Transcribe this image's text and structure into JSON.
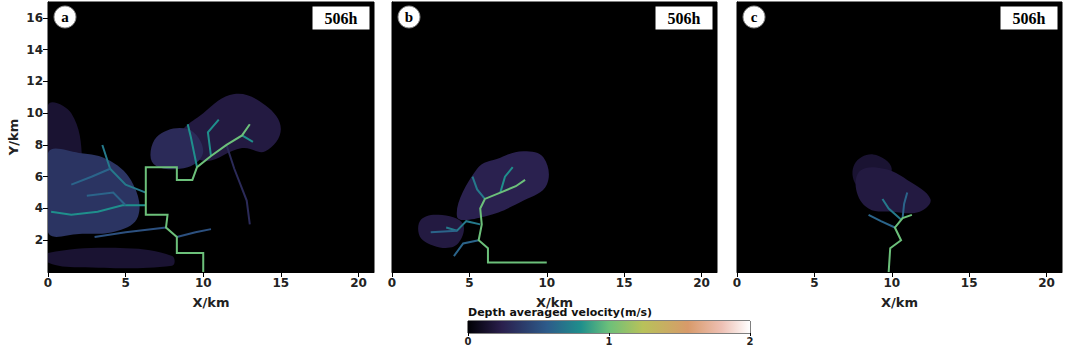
{
  "chart_data": [
    {
      "type": "flow_field",
      "label": "a",
      "time": "506h",
      "xlabel": "X/km",
      "ylabel": "Y/km",
      "xlim": [
        0,
        21
      ],
      "ylim": [
        0,
        17
      ],
      "xticks": [
        0,
        5,
        10,
        15,
        20
      ],
      "yticks": [
        2,
        4,
        6,
        8,
        10,
        12,
        14,
        16
      ],
      "plumes": [
        {
          "polygon": [
            [
              0,
              2.8
            ],
            [
              1.8,
              3.5
            ],
            [
              2.2,
              7
            ],
            [
              1.5,
              10
            ],
            [
              0,
              10.5
            ]
          ],
          "velocity": 0.15
        },
        {
          "polygon": [
            [
              0,
              0.6
            ],
            [
              2,
              0.3
            ],
            [
              8,
              0.4
            ],
            [
              8,
              1
            ],
            [
              5,
              1.5
            ],
            [
              0,
              1.2
            ]
          ],
          "velocity": 0.15
        },
        {
          "polygon": [
            [
              8.5,
              8.5
            ],
            [
              10,
              10
            ],
            [
              12,
              11.2
            ],
            [
              14,
              10.5
            ],
            [
              15,
              9
            ],
            [
              14,
              7.6
            ],
            [
              12.5,
              7.8
            ],
            [
              10,
              7
            ]
          ],
          "velocity": 0.2
        },
        {
          "polygon": [
            [
              0,
              2.5
            ],
            [
              2,
              2.4
            ],
            [
              4.5,
              2.6
            ],
            [
              5.8,
              3.5
            ],
            [
              5.5,
              5.5
            ],
            [
              4,
              7
            ],
            [
              2,
              7.5
            ],
            [
              0,
              7.5
            ]
          ],
          "velocity": 0.35
        },
        {
          "polygon": [
            [
              6.8,
              6.8
            ],
            [
              9,
              6.6
            ],
            [
              10,
              7.6
            ],
            [
              9,
              9
            ],
            [
              7,
              8.5
            ]
          ],
          "velocity": 0.3
        }
      ],
      "channels": [
        {
          "path": [
            [
              11.5,
              8
            ],
            [
              12,
              6.5
            ],
            [
              12.8,
              4.5
            ],
            [
              13,
              3
            ]
          ],
          "velocity": 0.3
        },
        {
          "path": [
            [
              12.5,
              8.6
            ],
            [
              13.2,
              8.2
            ]
          ],
          "velocity": 0.8
        },
        {
          "path": [
            [
              9.6,
              6.6
            ],
            [
              9.2,
              8.5
            ],
            [
              9,
              9.3
            ]
          ],
          "velocity": 0.8
        },
        {
          "path": [
            [
              10.5,
              7.3
            ],
            [
              10.3,
              8.8
            ],
            [
              11,
              9.6
            ]
          ],
          "velocity": 0.8
        },
        {
          "path": [
            [
              6.3,
              5
            ],
            [
              5,
              5.5
            ],
            [
              4,
              6.5
            ],
            [
              3.5,
              8
            ]
          ],
          "velocity": 0.7
        },
        {
          "path": [
            [
              6.3,
              4.2
            ],
            [
              4.8,
              4.2
            ],
            [
              3.2,
              3.8
            ],
            [
              1.5,
              3.6
            ],
            [
              0.2,
              3.8
            ]
          ],
          "velocity": 0.8
        },
        {
          "path": [
            [
              5,
              4.2
            ],
            [
              4.2,
              5
            ],
            [
              2.5,
              4.8
            ]
          ],
          "velocity": 0.6
        },
        {
          "path": [
            [
              4,
              6.5
            ],
            [
              2.8,
              6
            ],
            [
              1.5,
              5.5
            ]
          ],
          "velocity": 0.6
        },
        {
          "path": [
            [
              8.3,
              2.2
            ],
            [
              9.5,
              2.5
            ],
            [
              10.5,
              2.7
            ]
          ],
          "velocity": 0.5
        },
        {
          "path": [
            [
              7.6,
              2.8
            ],
            [
              5,
              2.5
            ],
            [
              3,
              2.2
            ]
          ],
          "velocity": 0.5
        },
        {
          "path": [
            [
              10,
              0
            ],
            [
              10,
              1.2
            ],
            [
              8.3,
              1.2
            ],
            [
              8.3,
              2.2
            ],
            [
              7.6,
              2.8
            ],
            [
              7.7,
              3.6
            ],
            [
              6.3,
              3.6
            ],
            [
              6.3,
              6.6
            ],
            [
              8.3,
              6.6
            ],
            [
              8.3,
              5.8
            ],
            [
              9.3,
              5.8
            ],
            [
              9.6,
              6.6
            ],
            [
              10.5,
              7.3
            ],
            [
              11.5,
              8
            ],
            [
              12.5,
              8.6
            ],
            [
              13,
              9.3
            ]
          ],
          "velocity": 1.0
        }
      ]
    },
    {
      "type": "flow_field",
      "label": "b",
      "time": "506h",
      "xlabel": "X/km",
      "tick_labels": "x",
      "xlim": [
        0,
        21
      ],
      "ylim": [
        0,
        17
      ],
      "xticks": [
        0,
        5,
        10,
        15,
        20
      ],
      "yticks": [
        2,
        4,
        6,
        8,
        10,
        12,
        14,
        16
      ],
      "plumes": [
        {
          "polygon": [
            [
              4.2,
              3.5
            ],
            [
              6,
              3.5
            ],
            [
              8.5,
              4.5
            ],
            [
              10,
              5.5
            ],
            [
              9.8,
              7.2
            ],
            [
              8.5,
              7.6
            ],
            [
              7,
              7.2
            ],
            [
              5.5,
              6.5
            ]
          ],
          "velocity": 0.25
        },
        {
          "polygon": [
            [
              2,
              2
            ],
            [
              4,
              1.6
            ],
            [
              4.6,
              3
            ],
            [
              3,
              3.6
            ],
            [
              1.8,
              3.2
            ]
          ],
          "velocity": 0.2
        }
      ],
      "channels": [
        {
          "path": [
            [
              7,
              5
            ],
            [
              7.3,
              6
            ],
            [
              7.8,
              6.6
            ]
          ],
          "velocity": 0.8
        },
        {
          "path": [
            [
              6,
              4.6
            ],
            [
              5.5,
              5.2
            ],
            [
              5.2,
              6
            ]
          ],
          "velocity": 0.7
        },
        {
          "path": [
            [
              5.7,
              3
            ],
            [
              4.8,
              3.2
            ],
            [
              4.2,
              2.6
            ],
            [
              3.5,
              2.8
            ]
          ],
          "velocity": 0.7
        },
        {
          "path": [
            [
              5.6,
              2
            ],
            [
              4.6,
              1.8
            ],
            [
              4,
              1
            ]
          ],
          "velocity": 0.6
        },
        {
          "path": [
            [
              4.2,
              2.6
            ],
            [
              2.5,
              2.5
            ]
          ],
          "velocity": 0.6
        },
        {
          "path": [
            [
              10,
              0.6
            ],
            [
              6.2,
              0.6
            ],
            [
              6.2,
              1.5
            ],
            [
              5.6,
              2
            ],
            [
              5.8,
              3
            ],
            [
              5.7,
              4
            ],
            [
              6,
              4.6
            ],
            [
              7,
              5
            ],
            [
              8,
              5.4
            ],
            [
              8.6,
              5.8
            ]
          ],
          "velocity": 1.0
        }
      ]
    },
    {
      "type": "flow_field",
      "label": "c",
      "time": "506h",
      "xlabel": "X/km",
      "tick_labels": "x",
      "xlim": [
        0,
        21
      ],
      "ylim": [
        0,
        17
      ],
      "xticks": [
        0,
        5,
        10,
        15,
        20
      ],
      "yticks": [
        2,
        4,
        6,
        8,
        10,
        12,
        14,
        16
      ],
      "plumes": [
        {
          "polygon": [
            [
              7.7,
              5.5
            ],
            [
              9,
              5
            ],
            [
              10,
              6.5
            ],
            [
              8.8,
              7.4
            ],
            [
              7.6,
              6.8
            ]
          ],
          "velocity": 0.15
        },
        {
          "polygon": [
            [
              8.5,
              4
            ],
            [
              10,
              3.8
            ],
            [
              11.8,
              3.8
            ],
            [
              12.5,
              4.6
            ],
            [
              11,
              5.8
            ],
            [
              9.5,
              6.5
            ],
            [
              8,
              6.4
            ],
            [
              7.7,
              5.2
            ]
          ],
          "velocity": 0.2
        }
      ],
      "channels": [
        {
          "path": [
            [
              10.6,
              3.3
            ],
            [
              9.8,
              4
            ],
            [
              9.4,
              4.6
            ]
          ],
          "velocity": 0.7
        },
        {
          "path": [
            [
              10.2,
              2.8
            ],
            [
              9.3,
              3.2
            ],
            [
              8.5,
              3.6
            ]
          ],
          "velocity": 0.6
        },
        {
          "path": [
            [
              10.7,
              3.4
            ],
            [
              10.8,
              4.3
            ],
            [
              11,
              5
            ]
          ],
          "velocity": 0.6
        },
        {
          "path": [
            [
              9.8,
              0
            ],
            [
              9.9,
              1.5
            ],
            [
              10.6,
              2
            ],
            [
              10.2,
              2.8
            ],
            [
              10.7,
              3.4
            ],
            [
              11.3,
              3.6
            ]
          ],
          "velocity": 1.0
        }
      ]
    }
  ],
  "colorbar": {
    "label": "Depth averaged velocity(m/s)",
    "range": [
      0,
      2
    ],
    "ticks": [
      0,
      1,
      2
    ]
  }
}
